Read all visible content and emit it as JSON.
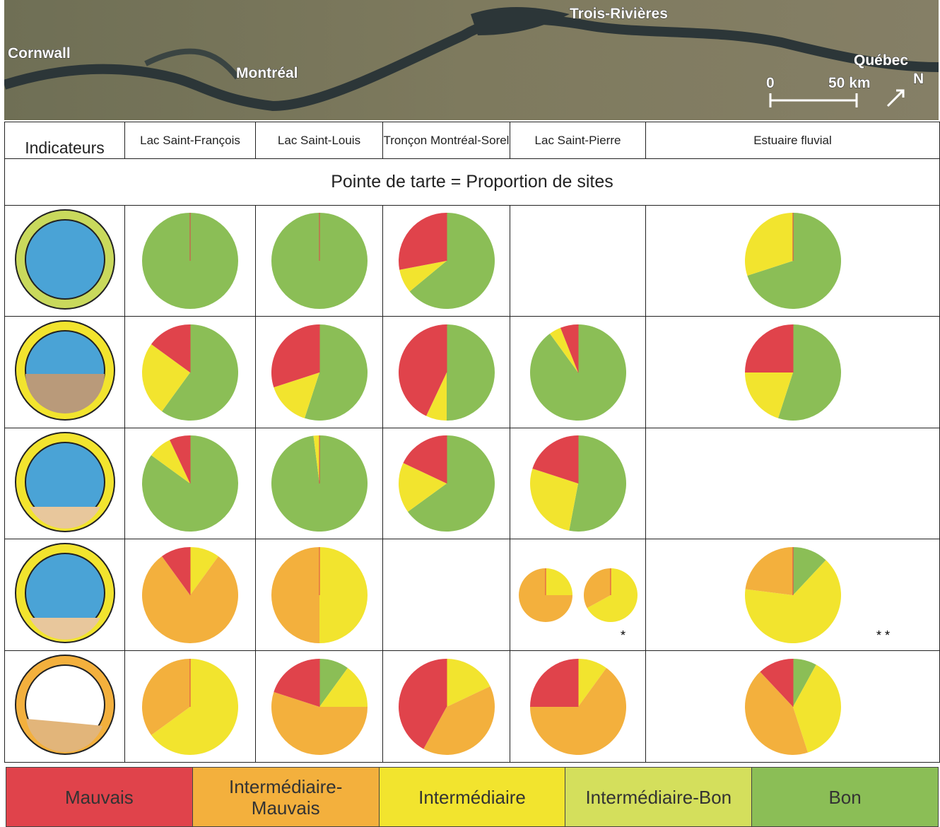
{
  "map": {
    "labels": [
      "Cornwall",
      "Montréal",
      "Trois-Rivières",
      "Québec"
    ],
    "scale_start": "0",
    "scale_end": "50 km",
    "north": "N"
  },
  "table": {
    "header": [
      "Indicateurs",
      "Lac Saint-François",
      "Lac Saint-Louis",
      "Tronçon Montréal-Sorel",
      "Lac Saint-Pierre",
      "Estuaire fluvial"
    ],
    "subtitle": "Pointe de tarte = Proportion de sites",
    "rows": [
      [
        {
          "pies": [
            [
              0,
              0,
              0,
              0,
              100
            ]
          ]
        },
        {
          "pies": [
            [
              0,
              0,
              0,
              0,
              100
            ]
          ]
        },
        {
          "pies": [
            [
              28,
              0,
              8,
              0,
              64
            ]
          ]
        },
        null,
        {
          "pies": [
            [
              0,
              0,
              30,
              0,
              70
            ]
          ]
        }
      ],
      [
        {
          "pies": [
            [
              15,
              0,
              25,
              0,
              60
            ]
          ]
        },
        {
          "pies": [
            [
              30,
              0,
              15,
              0,
              55
            ]
          ]
        },
        {
          "pies": [
            [
              43,
              0,
              7,
              0,
              50
            ]
          ]
        },
        {
          "pies": [
            [
              6,
              0,
              4,
              0,
              90
            ]
          ]
        },
        {
          "pies": [
            [
              25,
              0,
              20,
              0,
              55
            ]
          ]
        }
      ],
      [
        {
          "pies": [
            [
              7,
              0,
              8,
              0,
              85
            ]
          ]
        },
        {
          "pies": [
            [
              0,
              0,
              2,
              0,
              98
            ]
          ]
        },
        {
          "pies": [
            [
              18,
              0,
              17,
              0,
              65
            ]
          ]
        },
        {
          "pies": [
            [
              20,
              0,
              27,
              0,
              53
            ]
          ]
        },
        null
      ],
      [
        {
          "pies": [
            [
              10,
              80,
              10,
              0,
              0
            ]
          ]
        },
        {
          "pies": [
            [
              0,
              50,
              50,
              0,
              0
            ]
          ]
        },
        null,
        {
          "pies": [
            [
              0,
              75,
              25,
              0,
              0
            ],
            [
              0,
              33,
              67,
              0,
              0
            ]
          ],
          "note": "*"
        },
        {
          "pies": [
            [
              0,
              23,
              65,
              0,
              12
            ]
          ],
          "note": "* *"
        }
      ],
      [
        {
          "pies": [
            [
              0,
              35,
              65,
              0,
              0
            ]
          ]
        },
        {
          "pies": [
            [
              20,
              55,
              15,
              0,
              10
            ]
          ]
        },
        {
          "pies": [
            [
              42,
              40,
              18,
              0,
              0
            ]
          ]
        },
        {
          "pies": [
            [
              25,
              65,
              10,
              0,
              0
            ]
          ]
        },
        {
          "pies": [
            [
              12,
              43,
              37,
              0,
              8
            ]
          ]
        }
      ]
    ]
  },
  "legend": [
    {
      "name": "Mauvais",
      "color": "#e0434b"
    },
    {
      "name": "Intermédiaire-Mauvais",
      "color": "#f3b03d"
    },
    {
      "name": "Intermédiaire",
      "color": "#f2e42e"
    },
    {
      "name": "Intermédiaire-Bon",
      "color": "#d4df5c"
    },
    {
      "name": "Bon",
      "color": "#8bbe56"
    }
  ]
}
